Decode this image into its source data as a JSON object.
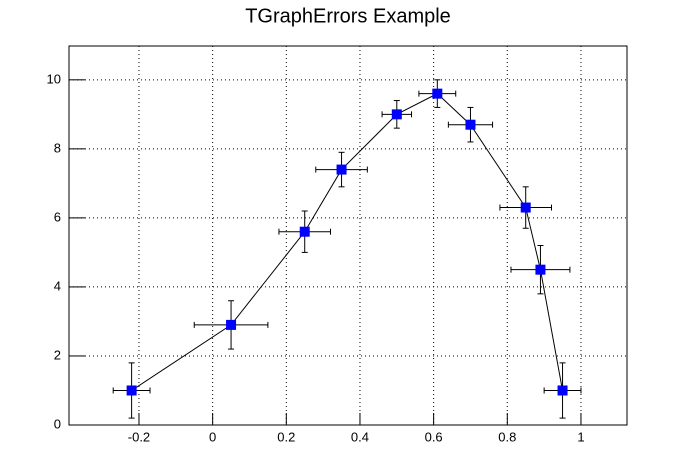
{
  "chart_data": {
    "type": "line",
    "title": "TGraphErrors Example",
    "x": [
      -0.22,
      0.05,
      0.25,
      0.35,
      0.5,
      0.61,
      0.7,
      0.85,
      0.89,
      0.95
    ],
    "values": [
      1,
      2.9,
      5.6,
      7.4,
      9,
      9.6,
      8.7,
      6.3,
      4.5,
      1
    ],
    "x_errors": [
      0.05,
      0.1,
      0.07,
      0.07,
      0.04,
      0.05,
      0.06,
      0.07,
      0.08,
      0.05
    ],
    "y_errors": [
      0.8,
      0.7,
      0.6,
      0.5,
      0.4,
      0.4,
      0.5,
      0.6,
      0.7,
      0.8
    ],
    "marker_color": "#0000ff",
    "line_color": "#000000",
    "xlim": [
      -0.39,
      1.125
    ],
    "ylim": [
      0,
      10.98
    ],
    "xticks": [
      -0.2,
      0,
      0.2,
      0.4,
      0.6,
      0.8,
      1
    ],
    "yticks": [
      0,
      2,
      4,
      6,
      8,
      10
    ],
    "grid": true
  }
}
